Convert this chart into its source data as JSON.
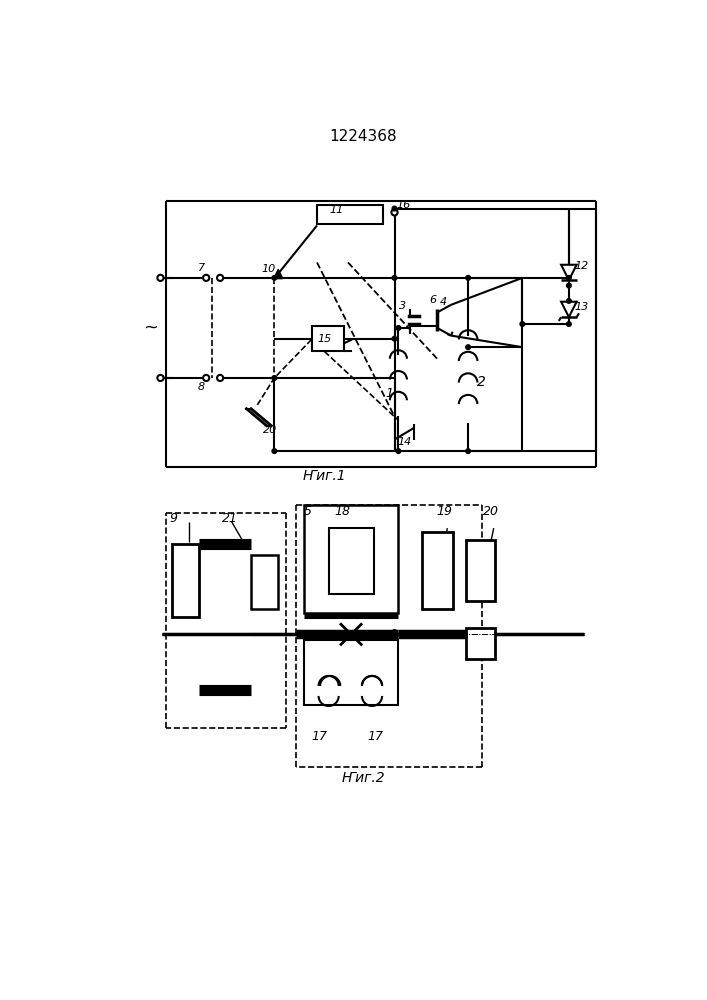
{
  "title": "1224368",
  "fig1_label": "Ҥиг.1",
  "fig2_label": "Ҥиг.2",
  "bg": "#ffffff",
  "lc": "#000000"
}
